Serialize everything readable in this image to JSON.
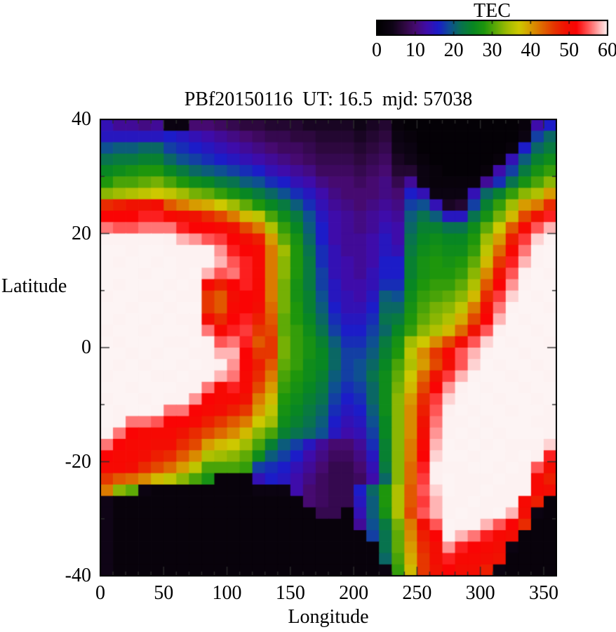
{
  "page": {
    "background": "#ffffff"
  },
  "title": "PBf20150116  UT: 16.5  mjd: 57038",
  "colorbar": {
    "title": "TEC",
    "min": 0,
    "max": 60,
    "tick_values": [
      0,
      10,
      20,
      30,
      40,
      50,
      60
    ],
    "tick_labels": [
      "0",
      "10",
      "20",
      "30",
      "40",
      "50",
      "60"
    ]
  },
  "axes": {
    "x": {
      "label": "Longitude",
      "range": [
        0,
        360
      ],
      "major_ticks": [
        0,
        50,
        100,
        150,
        200,
        250,
        300,
        350
      ],
      "minor_step": 10
    },
    "y": {
      "label": "Latitude",
      "range": [
        -40,
        40
      ],
      "major_ticks": [
        40,
        20,
        0,
        -20,
        -40
      ],
      "minor_step": 10
    }
  },
  "chart_data": {
    "type": "heatmap",
    "title": "PBf20150116  UT: 16.5  mjd: 57038",
    "xlabel": "Longitude",
    "ylabel": "Latitude",
    "colorbar_title": "TEC",
    "xlim": [
      0,
      360
    ],
    "ylim": [
      -40,
      40
    ],
    "value_range": [
      0,
      60
    ],
    "lon_start": 0,
    "lon_step": 10,
    "lat_start": 40,
    "lat_step": -2,
    "grid": "off",
    "legend_position": "top-right-colorbar",
    "palette_stops": [
      [
        0,
        "#000000"
      ],
      [
        4,
        "#0f0416"
      ],
      [
        7,
        "#2d083e"
      ],
      [
        10,
        "#460a70"
      ],
      [
        13,
        "#3e0caa"
      ],
      [
        16,
        "#1c1cc8"
      ],
      [
        19,
        "#0e5091"
      ],
      [
        22,
        "#08734e"
      ],
      [
        25,
        "#088723"
      ],
      [
        28,
        "#1e960c"
      ],
      [
        31,
        "#5faa06"
      ],
      [
        34,
        "#a0bc02"
      ],
      [
        37,
        "#cdc800"
      ],
      [
        40,
        "#d79b00"
      ],
      [
        43,
        "#de6900"
      ],
      [
        46,
        "#e63700"
      ],
      [
        49,
        "#f01202"
      ],
      [
        52,
        "#fa0404"
      ],
      [
        55,
        "#ff5555"
      ],
      [
        58,
        "#ffb4b4"
      ],
      [
        60,
        "#fdf0f0"
      ],
      [
        63,
        "#fdf6f6"
      ]
    ],
    "values": [
      [
        14,
        12,
        12,
        11,
        12,
        3,
        3,
        10,
        10,
        9,
        8,
        7,
        7,
        6,
        6,
        6,
        5,
        5,
        5,
        5,
        4,
        5,
        6,
        2,
        1,
        1,
        1,
        1,
        1,
        1,
        1,
        1,
        1,
        2,
        13,
        16
      ],
      [
        15,
        15,
        15,
        15,
        15,
        16,
        15,
        14,
        13,
        12,
        11,
        10,
        9,
        8,
        8,
        7,
        7,
        6,
        6,
        6,
        5,
        6,
        7,
        3,
        2,
        1,
        1,
        1,
        1,
        1,
        1,
        1,
        1,
        3,
        18,
        21
      ],
      [
        19,
        20,
        20,
        21,
        21,
        18,
        17,
        16,
        15,
        14,
        13,
        12,
        11,
        10,
        9,
        9,
        8,
        7,
        7,
        7,
        6,
        7,
        8,
        4,
        3,
        1,
        1,
        1,
        1,
        1,
        1,
        1,
        2,
        16,
        21,
        23
      ],
      [
        22,
        23,
        23,
        24,
        24,
        21,
        19,
        18,
        17,
        16,
        15,
        14,
        13,
        12,
        11,
        10,
        9,
        8,
        8,
        8,
        7,
        8,
        9,
        5,
        4,
        2,
        1,
        1,
        1,
        1,
        1,
        2,
        14,
        20,
        24,
        26
      ],
      [
        25,
        26,
        27,
        28,
        28,
        25,
        23,
        21,
        20,
        19,
        18,
        17,
        16,
        14,
        13,
        12,
        11,
        9,
        9,
        9,
        8,
        9,
        10,
        6,
        6,
        3,
        2,
        1,
        1,
        1,
        2,
        13,
        18,
        23,
        27,
        29
      ],
      [
        28,
        30,
        30,
        31,
        32,
        30,
        28,
        26,
        25,
        23,
        22,
        20,
        19,
        17,
        16,
        14,
        13,
        11,
        10,
        10,
        9,
        10,
        11,
        8,
        12,
        3,
        2,
        2,
        2,
        2,
        12,
        17,
        22,
        27,
        30,
        33
      ],
      [
        33,
        34,
        35,
        36,
        37,
        36,
        34,
        32,
        31,
        29,
        27,
        25,
        23,
        21,
        19,
        17,
        15,
        13,
        11,
        10,
        10,
        10,
        11,
        10,
        16,
        14,
        3,
        3,
        3,
        14,
        21,
        24,
        29,
        33,
        35,
        40
      ],
      [
        47,
        48,
        49,
        49,
        50,
        44,
        42,
        40,
        39,
        37,
        34,
        31,
        28,
        25,
        23,
        20,
        17,
        14,
        12,
        11,
        10,
        11,
        12,
        11,
        18,
        19,
        14,
        5,
        6,
        18,
        24,
        29,
        34,
        40,
        42,
        47
      ],
      [
        52,
        52,
        52,
        53,
        53,
        51,
        50,
        49,
        47,
        45,
        42,
        38,
        36,
        30,
        26,
        23,
        19,
        15,
        13,
        12,
        11,
        12,
        13,
        12,
        20,
        22,
        20,
        15,
        15,
        22,
        27,
        32,
        38,
        45,
        49,
        53
      ],
      [
        56,
        55,
        55,
        56,
        56,
        56,
        53,
        52,
        52,
        51,
        49,
        45,
        42,
        35,
        29,
        25,
        20,
        16,
        13,
        12,
        11,
        12,
        14,
        13,
        21,
        24,
        24,
        22,
        22,
        26,
        31,
        37,
        44,
        51,
        55,
        58
      ],
      [
        61,
        61,
        61,
        61,
        61,
        60,
        58,
        57,
        55,
        54,
        52,
        50,
        48,
        40,
        31,
        27,
        21,
        16,
        13,
        12,
        12,
        13,
        15,
        13,
        22,
        25,
        26,
        25,
        25,
        28,
        34,
        40,
        48,
        54,
        59,
        61
      ],
      [
        62,
        62,
        61,
        62,
        62,
        61,
        61,
        61,
        61,
        57,
        53,
        52,
        51,
        42,
        34,
        28,
        22,
        17,
        14,
        12,
        12,
        13,
        15,
        14,
        23,
        26,
        27,
        26,
        26,
        29,
        36,
        43,
        51,
        56,
        61,
        62
      ],
      [
        62,
        61,
        62,
        62,
        61,
        62,
        61,
        61,
        61,
        58,
        55,
        53,
        51,
        42,
        33,
        28,
        23,
        17,
        14,
        13,
        12,
        13,
        16,
        16,
        24,
        27,
        28,
        27,
        28,
        31,
        38,
        46,
        53,
        58,
        61,
        62
      ],
      [
        62,
        62,
        62,
        61,
        62,
        62,
        61,
        62,
        58,
        55,
        56,
        53,
        51,
        42,
        33,
        28,
        23,
        18,
        14,
        13,
        12,
        14,
        16,
        16,
        24,
        27,
        28,
        28,
        29,
        33,
        41,
        49,
        55,
        60,
        62,
        61
      ],
      [
        62,
        61,
        62,
        62,
        62,
        61,
        62,
        61,
        51,
        48,
        52,
        53,
        51,
        42,
        32,
        27,
        23,
        18,
        15,
        13,
        13,
        14,
        17,
        17,
        25,
        28,
        29,
        29,
        31,
        35,
        44,
        52,
        57,
        61,
        62,
        62
      ],
      [
        61,
        62,
        62,
        61,
        61,
        62,
        61,
        61,
        46,
        44,
        50,
        52,
        51,
        42,
        32,
        27,
        24,
        19,
        15,
        14,
        13,
        15,
        20,
        19,
        26,
        29,
        30,
        31,
        33,
        38,
        47,
        54,
        59,
        62,
        61,
        62
      ],
      [
        62,
        62,
        61,
        62,
        62,
        61,
        62,
        62,
        46,
        44,
        51,
        52,
        50,
        43,
        32,
        28,
        24,
        20,
        16,
        14,
        14,
        16,
        21,
        21,
        27,
        30,
        32,
        33,
        36,
        42,
        50,
        56,
        61,
        62,
        62,
        61
      ],
      [
        62,
        61,
        62,
        62,
        61,
        62,
        61,
        61,
        50,
        47,
        52,
        53,
        48,
        44,
        31,
        28,
        25,
        21,
        17,
        15,
        15,
        17,
        22,
        23,
        28,
        31,
        33,
        35,
        39,
        45,
        52,
        58,
        62,
        61,
        62,
        62
      ],
      [
        61,
        62,
        62,
        61,
        62,
        62,
        62,
        61,
        56,
        51,
        53,
        54,
        46,
        45,
        31,
        29,
        26,
        22,
        18,
        16,
        16,
        18,
        21,
        25,
        29,
        33,
        35,
        38,
        43,
        49,
        55,
        60,
        62,
        62,
        61,
        62
      ],
      [
        62,
        61,
        62,
        62,
        62,
        61,
        61,
        62,
        61,
        55,
        56,
        53,
        44,
        46,
        32,
        29,
        27,
        24,
        20,
        17,
        17,
        19,
        23,
        27,
        34,
        37,
        41,
        45,
        50,
        55,
        59,
        62,
        61,
        62,
        62,
        61
      ],
      [
        62,
        62,
        61,
        62,
        61,
        62,
        62,
        61,
        61,
        58,
        58,
        52,
        46,
        46,
        32,
        29,
        27,
        25,
        21,
        18,
        18,
        20,
        24,
        28,
        36,
        41,
        46,
        51,
        55,
        58,
        61,
        62,
        62,
        61,
        62,
        62
      ],
      [
        62,
        61,
        62,
        61,
        62,
        62,
        61,
        62,
        61,
        60,
        57,
        52,
        48,
        44,
        31,
        29,
        26,
        25,
        21,
        18,
        19,
        21,
        25,
        30,
        35,
        40,
        45,
        50,
        55,
        59,
        62,
        61,
        62,
        62,
        61,
        62
      ],
      [
        61,
        62,
        62,
        62,
        61,
        61,
        62,
        61,
        61,
        58,
        56,
        51,
        47,
        42,
        30,
        28,
        26,
        24,
        20,
        18,
        19,
        22,
        26,
        31,
        37,
        43,
        49,
        54,
        58,
        61,
        62,
        62,
        61,
        62,
        62,
        61
      ],
      [
        62,
        62,
        61,
        62,
        62,
        62,
        61,
        61,
        56,
        51,
        53,
        51,
        45,
        40,
        29,
        27,
        25,
        23,
        19,
        17,
        18,
        21,
        26,
        32,
        38,
        45,
        52,
        57,
        60,
        62,
        61,
        62,
        62,
        61,
        62,
        62
      ],
      [
        61,
        62,
        62,
        61,
        62,
        61,
        61,
        57,
        52,
        51,
        51,
        49,
        42,
        38,
        28,
        26,
        24,
        22,
        18,
        16,
        17,
        21,
        26,
        33,
        40,
        47,
        54,
        59,
        61,
        62,
        62,
        61,
        62,
        62,
        61,
        62
      ],
      [
        62,
        61,
        62,
        62,
        61,
        56,
        56,
        52,
        51,
        50,
        48,
        46,
        40,
        36,
        27,
        25,
        23,
        21,
        17,
        15,
        16,
        20,
        26,
        33,
        41,
        48,
        55,
        60,
        62,
        61,
        62,
        62,
        61,
        62,
        62,
        61
      ],
      [
        62,
        61,
        56,
        56,
        55,
        52,
        52,
        51,
        48,
        46,
        44,
        42,
        37,
        34,
        26,
        24,
        22,
        20,
        16,
        14,
        15,
        19,
        25,
        33,
        41,
        49,
        56,
        61,
        61,
        62,
        61,
        62,
        62,
        62,
        61,
        61
      ],
      [
        61,
        56,
        52,
        51,
        51,
        51,
        49,
        47,
        45,
        43,
        41,
        38,
        33,
        30,
        24,
        22,
        21,
        19,
        15,
        13,
        14,
        18,
        25,
        33,
        41,
        50,
        57,
        61,
        62,
        61,
        62,
        61,
        62,
        62,
        62,
        61
      ],
      [
        56,
        52,
        51,
        51,
        50,
        50,
        47,
        45,
        40,
        38,
        37,
        34,
        30,
        24,
        20,
        18,
        15,
        12,
        10,
        10,
        12,
        17,
        24,
        33,
        42,
        51,
        58,
        62,
        61,
        62,
        61,
        62,
        61,
        61,
        61,
        59
      ],
      [
        52,
        51,
        51,
        50,
        48,
        47,
        44,
        41,
        35,
        34,
        33,
        31,
        26,
        20,
        18,
        16,
        13,
        11,
        9,
        9,
        11,
        15,
        24,
        33,
        42,
        52,
        59,
        62,
        62,
        61,
        62,
        62,
        61,
        62,
        60,
        53
      ],
      [
        51,
        51,
        50,
        47,
        45,
        43,
        40,
        36,
        30,
        30,
        30,
        29,
        18,
        17,
        16,
        14,
        12,
        10,
        8,
        8,
        10,
        14,
        23,
        33,
        43,
        53,
        60,
        61,
        61,
        62,
        62,
        61,
        62,
        61,
        55,
        50
      ],
      [
        46,
        44,
        43,
        41,
        38,
        36,
        33,
        30,
        27,
        2,
        2,
        2,
        14,
        16,
        15,
        13,
        11,
        9,
        8,
        8,
        9,
        13,
        21,
        33,
        43,
        54,
        60,
        62,
        61,
        61,
        61,
        62,
        61,
        61,
        51,
        48
      ],
      [
        42,
        33,
        31,
        3,
        2,
        2,
        2,
        2,
        2,
        2,
        2,
        2,
        3,
        3,
        3,
        13,
        10,
        9,
        8,
        8,
        16,
        21,
        28,
        35,
        44,
        55,
        59,
        62,
        61,
        61,
        62,
        61,
        61,
        61,
        51,
        50
      ],
      [
        4,
        2,
        2,
        2,
        2,
        2,
        2,
        2,
        2,
        2,
        2,
        2,
        2,
        2,
        2,
        2,
        10,
        9,
        8,
        8,
        15,
        20,
        28,
        35,
        44,
        54,
        58,
        61,
        61,
        62,
        61,
        61,
        61,
        51,
        48,
        2
      ],
      [
        4,
        2,
        2,
        2,
        2,
        2,
        2,
        2,
        2,
        2,
        2,
        2,
        2,
        2,
        2,
        2,
        2,
        8,
        8,
        2,
        14,
        20,
        27,
        35,
        45,
        55,
        58,
        61,
        62,
        61,
        61,
        62,
        58,
        50,
        3,
        2
      ],
      [
        4,
        2,
        2,
        2,
        2,
        2,
        2,
        2,
        2,
        2,
        2,
        2,
        2,
        2,
        2,
        2,
        2,
        2,
        2,
        2,
        12,
        19,
        23,
        32,
        42,
        50,
        55,
        62,
        61,
        61,
        58,
        55,
        52,
        47,
        2,
        2
      ],
      [
        4,
        2,
        2,
        2,
        2,
        2,
        2,
        2,
        2,
        2,
        2,
        2,
        2,
        2,
        2,
        2,
        2,
        2,
        2,
        2,
        2,
        18,
        22,
        31,
        41,
        48,
        52,
        61,
        58,
        56,
        53,
        51,
        50,
        2,
        2,
        2
      ],
      [
        4,
        2,
        2,
        2,
        2,
        2,
        2,
        2,
        2,
        2,
        2,
        2,
        2,
        2,
        2,
        2,
        2,
        2,
        2,
        2,
        2,
        2,
        22,
        31,
        40,
        47,
        50,
        57,
        53,
        52,
        51,
        50,
        3,
        2,
        2,
        2
      ],
      [
        4,
        2,
        2,
        2,
        2,
        2,
        2,
        2,
        2,
        2,
        2,
        2,
        2,
        2,
        2,
        2,
        2,
        2,
        2,
        2,
        2,
        2,
        21,
        30,
        39,
        46,
        50,
        53,
        51,
        51,
        50,
        49,
        2,
        2,
        2,
        2
      ],
      [
        4,
        2,
        2,
        2,
        2,
        2,
        2,
        2,
        2,
        2,
        2,
        2,
        2,
        2,
        2,
        2,
        2,
        2,
        2,
        2,
        2,
        2,
        3,
        29,
        38,
        46,
        49,
        52,
        50,
        50,
        48,
        3,
        2,
        2,
        2,
        2
      ]
    ]
  }
}
